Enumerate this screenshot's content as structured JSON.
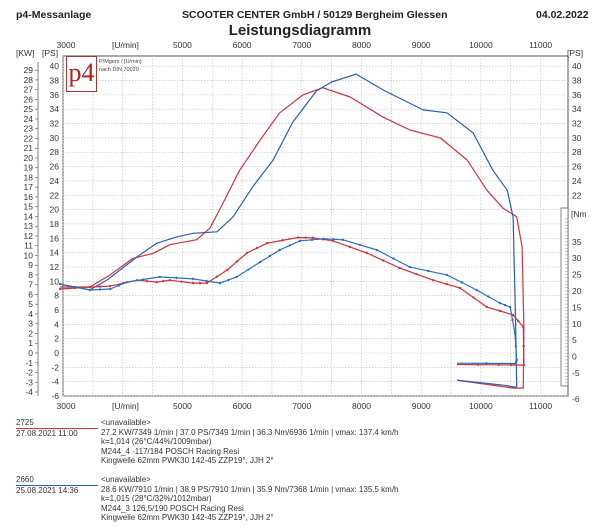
{
  "header": {
    "left": "p4-Messanlage",
    "center": "SCOOTER CENTER GmbH / 50129 Bergheim Glessen",
    "date": "04.02.2022",
    "title": "Leistungsdiagramm"
  },
  "logo": {
    "text": "p4",
    "subtitle_line1": "P/Mgem / [U/min]",
    "subtitle_line2": "nach DIN 70020"
  },
  "chart_data": {
    "type": "line",
    "title": "Leistungsdiagramm",
    "xlabel": "[U/min]",
    "ylabel_left_kw": "[KW]",
    "ylabel_left_ps": "[PS]",
    "ylabel_right_ps": "[PS]",
    "ylabel_right_nm": "[Nm",
    "xlim": [
      3000,
      11000
    ],
    "x_ticks": [
      3000,
      5000,
      6000,
      7000,
      8000,
      9000,
      10000,
      11000
    ],
    "ps_ticks_left": [
      40,
      38,
      36,
      34,
      32,
      30,
      28,
      26,
      24,
      22,
      20,
      18,
      16,
      14,
      12,
      10,
      8,
      6,
      4,
      2,
      0,
      -2,
      -4,
      -6
    ],
    "ps_ticks_right": [
      40,
      38,
      36,
      34,
      32,
      30,
      28,
      26,
      24,
      22
    ],
    "kw_ticks": [
      29,
      28,
      27,
      26,
      25,
      24,
      23,
      22,
      21,
      20,
      19,
      18,
      17,
      16,
      15,
      14,
      13,
      12,
      11,
      10,
      9,
      8,
      7,
      6,
      5,
      4,
      3,
      2,
      1,
      0,
      -1,
      -2,
      -3,
      -4
    ],
    "nm_ticks": [
      35,
      30,
      25,
      20,
      15,
      10,
      5,
      0,
      -5
    ],
    "bottom_right_ps_tick": -6,
    "ylim_ps": [
      -6,
      40
    ],
    "grid": true,
    "series": [
      {
        "name": "2725 Leistung",
        "color": "#d0323f",
        "unit": "PS",
        "points": [
          [
            2950,
            9.2
          ],
          [
            3450,
            9.2
          ],
          [
            3790,
            10.9
          ],
          [
            4170,
            13.2
          ],
          [
            4510,
            13.9
          ],
          [
            4790,
            15.1
          ],
          [
            5240,
            15.8
          ],
          [
            5460,
            17.4
          ],
          [
            5680,
            20.9
          ],
          [
            5960,
            25.5
          ],
          [
            6300,
            29.7
          ],
          [
            6630,
            33.5
          ],
          [
            7020,
            36
          ],
          [
            7349,
            37.0
          ],
          [
            7810,
            35.7
          ],
          [
            8360,
            32.9
          ],
          [
            8810,
            31.1
          ],
          [
            9320,
            30
          ],
          [
            9770,
            26.9
          ],
          [
            10100,
            22.7
          ],
          [
            10370,
            20.2
          ],
          [
            10600,
            19
          ],
          [
            10690,
            14.8
          ],
          [
            10720,
            3.6
          ],
          [
            10710,
            -4.9
          ],
          [
            10540,
            -4.9
          ],
          [
            9600,
            -3.8
          ]
        ]
      },
      {
        "name": "2660 Leistung",
        "color": "#2a5db0",
        "unit": "PS",
        "points": [
          [
            2950,
            9.6
          ],
          [
            3450,
            8.8
          ],
          [
            3740,
            10.2
          ],
          [
            4240,
            13.4
          ],
          [
            4570,
            15.3
          ],
          [
            4910,
            16.2
          ],
          [
            5180,
            16.7
          ],
          [
            5580,
            16.9
          ],
          [
            5850,
            19
          ],
          [
            6180,
            23.2
          ],
          [
            6520,
            26.9
          ],
          [
            6850,
            32.2
          ],
          [
            7250,
            36.6
          ],
          [
            7500,
            37.8
          ],
          [
            7910,
            38.9
          ],
          [
            8360,
            36.7
          ],
          [
            9030,
            33.9
          ],
          [
            9430,
            33.5
          ],
          [
            9870,
            30.7
          ],
          [
            10200,
            25.5
          ],
          [
            10440,
            22.7
          ],
          [
            10540,
            19
          ],
          [
            10580,
            5
          ],
          [
            10600,
            -4.8
          ],
          [
            10400,
            -4.5
          ],
          [
            9600,
            -3.8
          ]
        ]
      },
      {
        "name": "2725 Drehmoment",
        "color": "#d0323f",
        "unit": "Nm",
        "markers": true,
        "points": [
          [
            2950,
            20.6
          ],
          [
            3450,
            21.2
          ],
          [
            3790,
            21.5
          ],
          [
            4240,
            23.3
          ],
          [
            4570,
            22.7
          ],
          [
            4790,
            23.3
          ],
          [
            5180,
            22.4
          ],
          [
            5410,
            22.4
          ],
          [
            5750,
            26.4
          ],
          [
            6080,
            31.6
          ],
          [
            6420,
            34.6
          ],
          [
            6936,
            36.3
          ],
          [
            7190,
            36.2
          ],
          [
            7520,
            35.3
          ],
          [
            8090,
            31.6
          ],
          [
            8640,
            27
          ],
          [
            9200,
            23.3
          ],
          [
            9650,
            20.9
          ],
          [
            10100,
            15.1
          ],
          [
            10540,
            12.7
          ],
          [
            10710,
            9
          ],
          [
            10720,
            -2.6
          ],
          [
            10300,
            -2.5
          ],
          [
            9600,
            -2.4
          ]
        ]
      },
      {
        "name": "2660 Drehmoment",
        "color": "#2a6fc0",
        "unit": "Nm",
        "markers": true,
        "points": [
          [
            2950,
            22.1
          ],
          [
            3450,
            20.3
          ],
          [
            3790,
            20.6
          ],
          [
            4070,
            22.7
          ],
          [
            4620,
            24.3
          ],
          [
            5180,
            23.7
          ],
          [
            5630,
            22.4
          ],
          [
            5910,
            24.3
          ],
          [
            6300,
            28.8
          ],
          [
            6630,
            32.5
          ],
          [
            6970,
            35.3
          ],
          [
            7368,
            35.9
          ],
          [
            7690,
            35.6
          ],
          [
            8260,
            32.5
          ],
          [
            8810,
            27.3
          ],
          [
            9430,
            24.9
          ],
          [
            9930,
            20.3
          ],
          [
            10320,
            16.3
          ],
          [
            10490,
            15.1
          ],
          [
            10570,
            7.2
          ],
          [
            10600,
            -1
          ],
          [
            10580,
            -2.1
          ],
          [
            9600,
            -2
          ]
        ]
      }
    ]
  },
  "runs": [
    {
      "id": "2725",
      "datetime": "27.08.2021  11:00",
      "color": "#d0323f",
      "name": "<unavailable>",
      "line1": "27.2 KW/7349 1/min  |  37.0 PS/7349 1/min  |  36.3 Nm/6936 1/min  |  vmax: 137.4 km/h",
      "line2": "k=1,014 (26°C/44%/1009mbar)",
      "line3": "M244_4 -117/184 POSCH Racing Resi",
      "line4": "Kingwelle 62mm PWK30 142-45 ZZP19°, JJH 2°"
    },
    {
      "id": "2660",
      "datetime": "25.08.2021  14:36",
      "color": "#2a5db0",
      "name": "<unavailable>",
      "line1": "28.6 KW/7910 1/min  |  38.9 PS/7910 1/min  |  35.9 Nm/7368 1/min  |  vmax: 135.5 km/h",
      "line2": "k=1,015 (28°C/32%/1012mbar)",
      "line3": "M244_3 126,5/190 POSCH Racing Resi",
      "line4": "Kingwelle 62mm PWK30 142-45 ZZP19°, JJH 2°"
    }
  ]
}
